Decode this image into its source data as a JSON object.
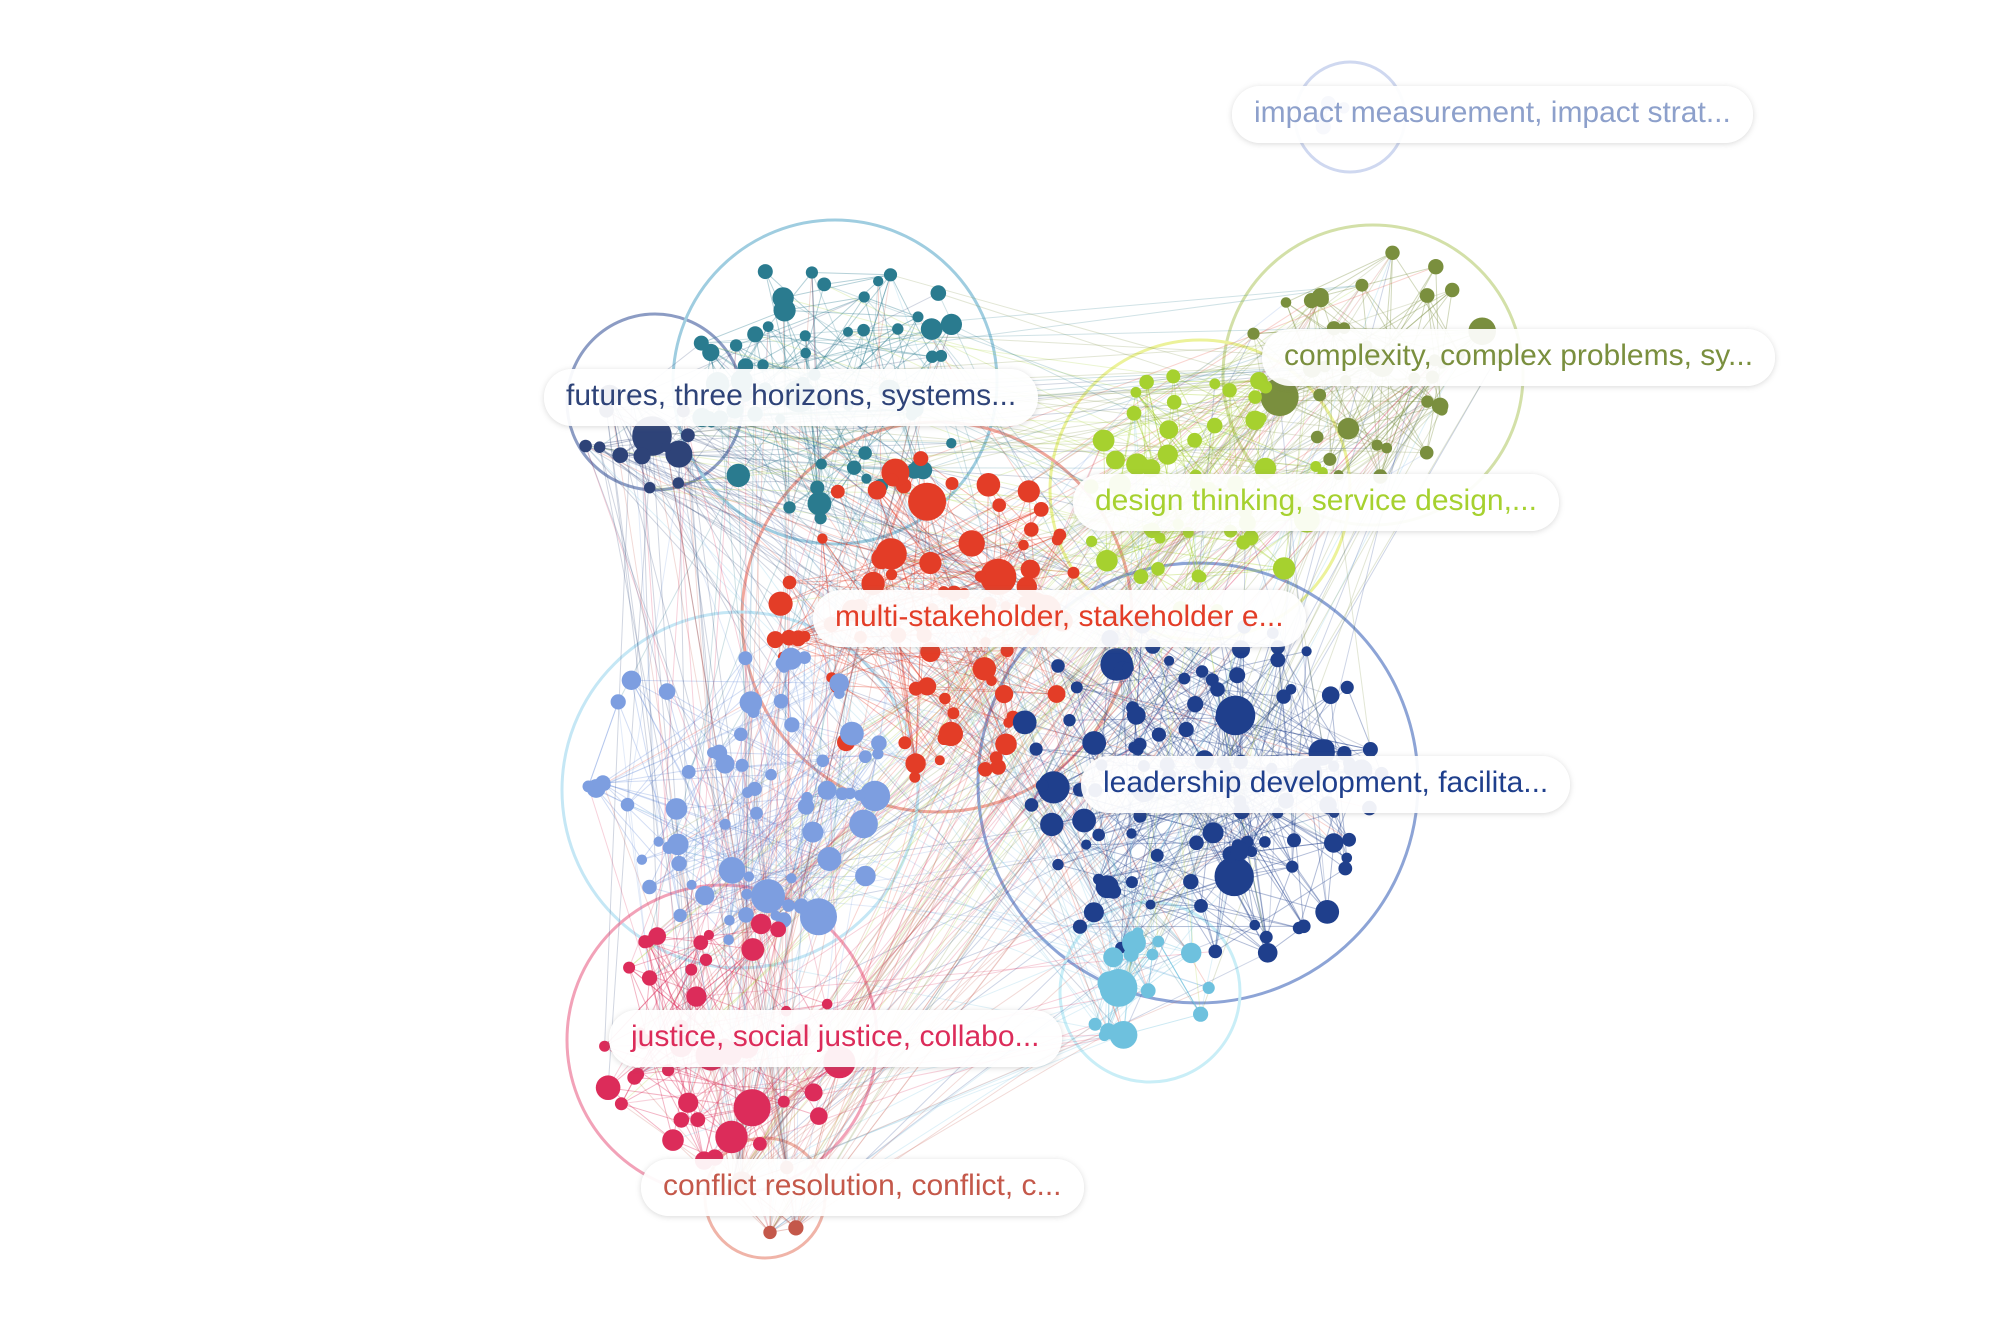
{
  "clusters": [
    {
      "id": "impact",
      "label": "impact measurement, impact strat...",
      "color": "#8da0cb",
      "ring": "#cfd8f0",
      "size": 4
    },
    {
      "id": "futures",
      "label": "futures, three horizons, systems...",
      "color": "#2e4378",
      "ring": "#8c9cc4",
      "size": 14
    },
    {
      "id": "teal",
      "label": "",
      "color": "#2a7b8f",
      "ring": "#9fcde0",
      "size": 60
    },
    {
      "id": "complexity",
      "label": "complexity, complex problems, sy...",
      "color": "#7a8f3e",
      "ring": "#d3e0a8",
      "size": 40
    },
    {
      "id": "design",
      "label": "design thinking, service design,...",
      "color": "#a6d12f",
      "ring": "#ecf29a",
      "size": 55
    },
    {
      "id": "stakeholder",
      "label": "multi-stakeholder, stakeholder e...",
      "color": "#e33d27",
      "ring": "#f0a79c",
      "size": 85
    },
    {
      "id": "leadership",
      "label": "leadership development, facilita...",
      "color": "#1f3f8c",
      "ring": "#8da4d6",
      "size": 120
    },
    {
      "id": "lightblue",
      "label": "",
      "color": "#7d9ee0",
      "ring": "#c5e7f5",
      "size": 70
    },
    {
      "id": "skyblue",
      "label": "",
      "color": "#6ec1de",
      "ring": "#c9eef7",
      "size": 18
    },
    {
      "id": "justice",
      "label": "justice, social justice, collabo...",
      "color": "#dc2c5a",
      "ring": "#f2a2b8",
      "size": 48
    },
    {
      "id": "conflict",
      "label": "conflict resolution, conflict, c...",
      "color": "#c4584a",
      "ring": "#f0b4a8",
      "size": 5
    }
  ]
}
